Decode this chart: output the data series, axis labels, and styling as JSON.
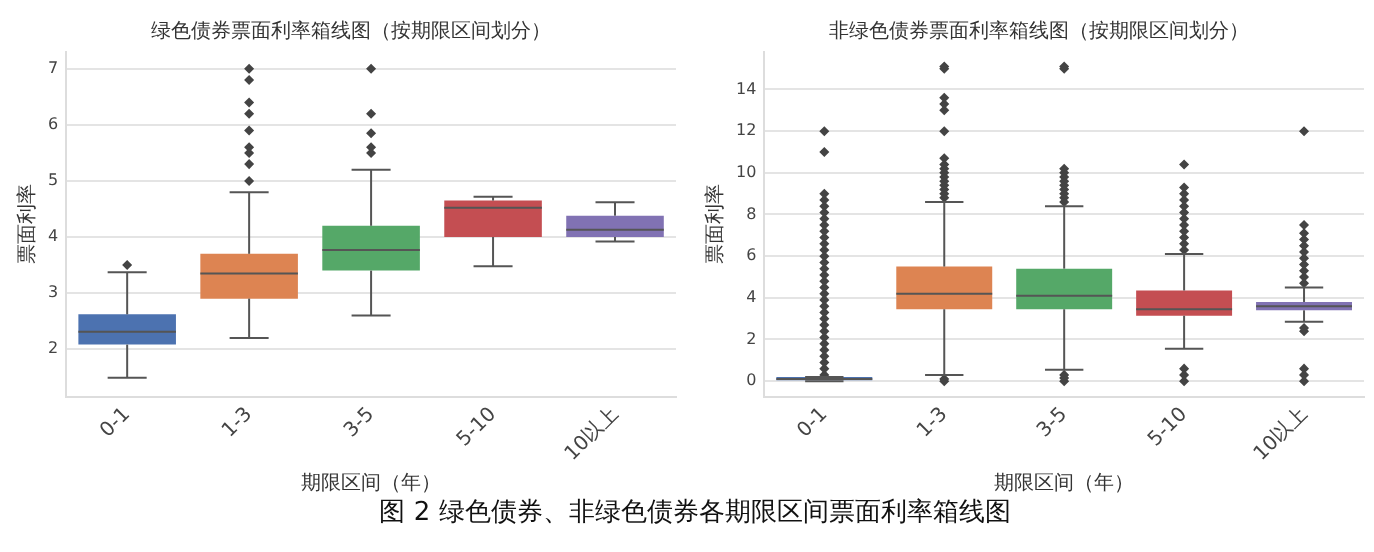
{
  "chart_data": [
    {
      "type": "box",
      "title": "绿色债券票面利率箱线图（按期限区间划分）",
      "xlabel": "期限区间（年）",
      "ylabel": "票面利率",
      "categories": [
        "0-1",
        "1-3",
        "3-5",
        "5-10",
        "10以上"
      ],
      "colors": [
        "#4c72b0",
        "#dd8452",
        "#55a868",
        "#c44e52",
        "#8172b3"
      ],
      "boxes": [
        {
          "low": 1.49,
          "q1": 2.08,
          "median": 2.31,
          "q3": 2.62,
          "high": 3.37,
          "outliers": [
            3.5
          ]
        },
        {
          "low": 2.2,
          "q1": 2.9,
          "median": 3.35,
          "q3": 3.7,
          "high": 4.8,
          "outliers": [
            5.0,
            5.3,
            5.5,
            5.6,
            5.9,
            6.2,
            6.4,
            6.8,
            7.0
          ]
        },
        {
          "low": 2.6,
          "q1": 3.4,
          "median": 3.77,
          "q3": 4.2,
          "high": 5.2,
          "outliers": [
            5.5,
            5.6,
            5.85,
            6.2,
            7.0
          ]
        },
        {
          "low": 3.48,
          "q1": 4.0,
          "median": 4.52,
          "q3": 4.65,
          "high": 4.72
        },
        {
          "low": 3.92,
          "q1": 4.0,
          "median": 4.13,
          "q3": 4.38,
          "high": 4.62
        }
      ],
      "ylim": [
        1.15,
        7.3
      ],
      "yticks": [
        2,
        3,
        4,
        5,
        6,
        7
      ],
      "grid": "y",
      "annotations": [
        "图 2 绿色债券、非绿色债券各期限区间票面利率箱线图"
      ]
    },
    {
      "type": "box",
      "title": "非绿色债券票面利率箱线图（按期限区间划分）",
      "xlabel": "期限区间（年）",
      "ylabel": "票面利率",
      "categories": [
        "0-1",
        "1-3",
        "3-5",
        "5-10",
        "10以上"
      ],
      "colors": [
        "#4c72b0",
        "#dd8452",
        "#55a868",
        "#c44e52",
        "#8172b3"
      ],
      "boxes": [
        {
          "low": 0.0,
          "q1": 0.0,
          "median": 0.1,
          "q3": 0.2,
          "high": 0.2,
          "outliers": [
            0.3,
            0.6,
            0.9,
            1.2,
            1.5,
            1.8,
            2.1,
            2.4,
            2.7,
            3.0,
            3.3,
            3.6,
            3.9,
            4.2,
            4.5,
            4.8,
            5.1,
            5.4,
            5.7,
            6.0,
            6.3,
            6.6,
            6.9,
            7.2,
            7.5,
            7.8,
            8.1,
            8.4,
            8.7,
            9.0,
            11,
            12
          ]
        },
        {
          "low": 0.3,
          "q1": 3.45,
          "median": 4.2,
          "q3": 5.5,
          "high": 8.6,
          "outliers": [
            0.0,
            0.1,
            8.8,
            9.0,
            9.2,
            9.4,
            9.6,
            9.8,
            10.0,
            10.2,
            10.4,
            10.7,
            12,
            13,
            13.3,
            13.6,
            15,
            15.1
          ]
        },
        {
          "low": 0.55,
          "q1": 3.45,
          "median": 4.1,
          "q3": 5.4,
          "high": 8.4,
          "outliers": [
            0.0,
            0.15,
            0.3,
            8.6,
            8.8,
            9.0,
            9.2,
            9.4,
            9.6,
            9.8,
            10.0,
            10.2,
            15,
            15.1
          ]
        },
        {
          "low": 1.55,
          "q1": 3.14,
          "median": 3.45,
          "q3": 4.35,
          "high": 6.1,
          "outliers": [
            0.0,
            0.3,
            0.6,
            6.3,
            6.6,
            6.9,
            7.2,
            7.5,
            7.8,
            8.1,
            8.4,
            8.7,
            9.0,
            9.3,
            10.4
          ]
        },
        {
          "low": 2.85,
          "q1": 3.4,
          "median": 3.6,
          "q3": 3.8,
          "high": 4.5,
          "outliers": [
            0.0,
            0.3,
            0.6,
            2.4,
            2.55,
            4.7,
            5.0,
            5.3,
            5.6,
            5.9,
            6.2,
            6.5,
            6.8,
            7.1,
            7.5,
            12
          ]
        }
      ],
      "ylim": [
        -0.75,
        15.8
      ],
      "yticks": [
        0,
        2,
        4,
        6,
        8,
        10,
        12,
        14
      ],
      "grid": "y"
    }
  ]
}
